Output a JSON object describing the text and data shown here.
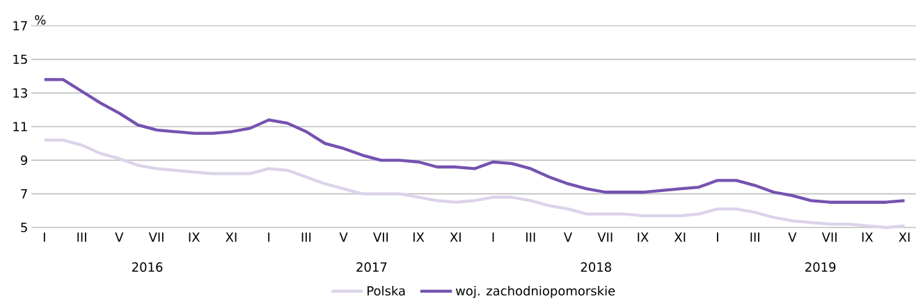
{
  "chart_data": {
    "type": "line",
    "ylabel": "%",
    "categories": [
      "I",
      null,
      "III",
      null,
      "V",
      null,
      "VII",
      null,
      "IX",
      null,
      "XI",
      null,
      "I",
      null,
      "III",
      null,
      "V",
      null,
      "VII",
      null,
      "IX",
      null,
      "XI",
      null,
      "I",
      null,
      "III",
      null,
      "V",
      null,
      "VII",
      null,
      "IX",
      null,
      "XI",
      null,
      "I",
      null,
      "III",
      null,
      "V",
      null,
      "VII",
      null,
      "IX",
      null,
      "XI"
    ],
    "series": [
      {
        "name": "Polska",
        "color": "#dcd3ea",
        "values": [
          10.2,
          10.2,
          9.9,
          9.4,
          9.1,
          8.7,
          8.5,
          8.4,
          8.3,
          8.2,
          8.2,
          8.2,
          8.5,
          8.4,
          8.0,
          7.6,
          7.3,
          7.0,
          7.0,
          7.0,
          6.8,
          6.6,
          6.5,
          6.6,
          6.8,
          6.8,
          6.6,
          6.3,
          6.1,
          5.8,
          5.8,
          5.8,
          5.7,
          5.7,
          5.7,
          5.8,
          6.1,
          6.1,
          5.9,
          5.6,
          5.4,
          5.3,
          5.2,
          5.2,
          5.1,
          5.0,
          5.1
        ]
      },
      {
        "name": "woj. zachodniopomorskie",
        "color": "#7452b0",
        "values": [
          13.8,
          13.8,
          13.1,
          12.4,
          11.8,
          11.1,
          10.8,
          10.7,
          10.6,
          10.6,
          10.7,
          10.9,
          11.4,
          11.2,
          10.7,
          10.0,
          9.7,
          9.3,
          9.0,
          9.0,
          8.9,
          8.6,
          8.6,
          8.5,
          8.9,
          8.8,
          8.5,
          8.0,
          7.6,
          7.3,
          7.1,
          7.1,
          7.1,
          7.2,
          7.3,
          7.4,
          7.8,
          7.8,
          7.5,
          7.1,
          6.9,
          6.6,
          6.5,
          6.5,
          6.5,
          6.5,
          6.6
        ]
      }
    ],
    "ylim": [
      5,
      17
    ],
    "yticks": [
      5,
      7,
      9,
      11,
      13,
      15,
      17
    ],
    "grid": "y",
    "legend": "bottom",
    "marker": "none",
    "line_style": "solid",
    "annotations": [
      "2016",
      "2017",
      "2018",
      "2019"
    ]
  }
}
